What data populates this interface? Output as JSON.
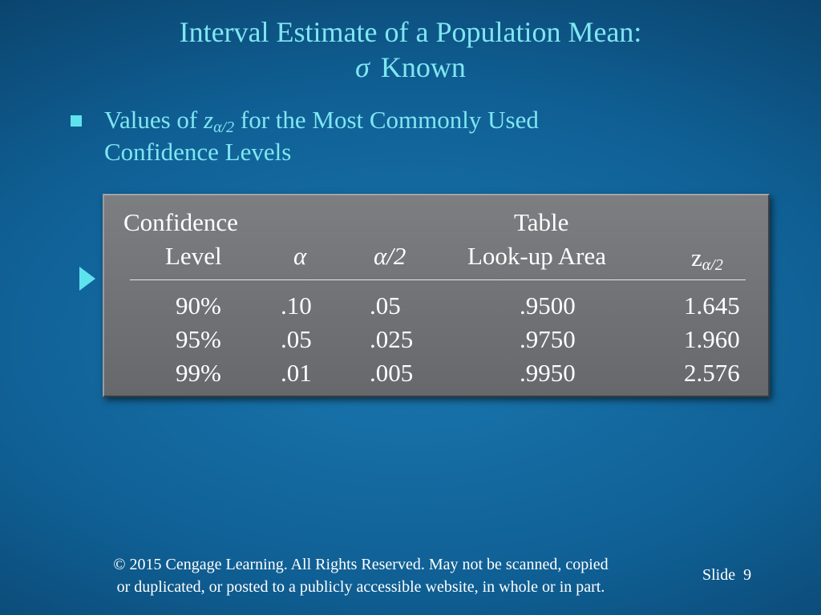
{
  "title": {
    "line1": "Interval Estimate of a Population Mean:",
    "sigma": "σ",
    "line2": "Known"
  },
  "bullet": {
    "pre": "Values of ",
    "z": "z",
    "sub": "α/2",
    "post": " for the Most Commonly Used",
    "line2": "Confidence Levels"
  },
  "table": {
    "headers": {
      "confidence_1": "Confidence",
      "confidence_2": "Level",
      "alpha": "α",
      "half_alpha": "α/2",
      "lookup_1": "Table",
      "lookup_2": "Look-up Area",
      "z": "z",
      "z_sub": "α/2"
    },
    "rows": [
      {
        "level": "90%",
        "alpha": ".10",
        "half_alpha": ".05",
        "area": ".9500",
        "z": "1.645"
      },
      {
        "level": "95%",
        "alpha": ".05",
        "half_alpha": ".025",
        "area": ".9750",
        "z": "1.960"
      },
      {
        "level": "99%",
        "alpha": ".01",
        "half_alpha": ".005",
        "area": ".9950",
        "z": "2.576"
      }
    ]
  },
  "footer": {
    "line1": "© 2015  Cengage Learning.  All Rights Reserved.  May not be scanned, copied",
    "line2": "or duplicated, or posted to a publicly accessible website, in whole or in part."
  },
  "slide": {
    "label": "Slide",
    "number": "9"
  }
}
